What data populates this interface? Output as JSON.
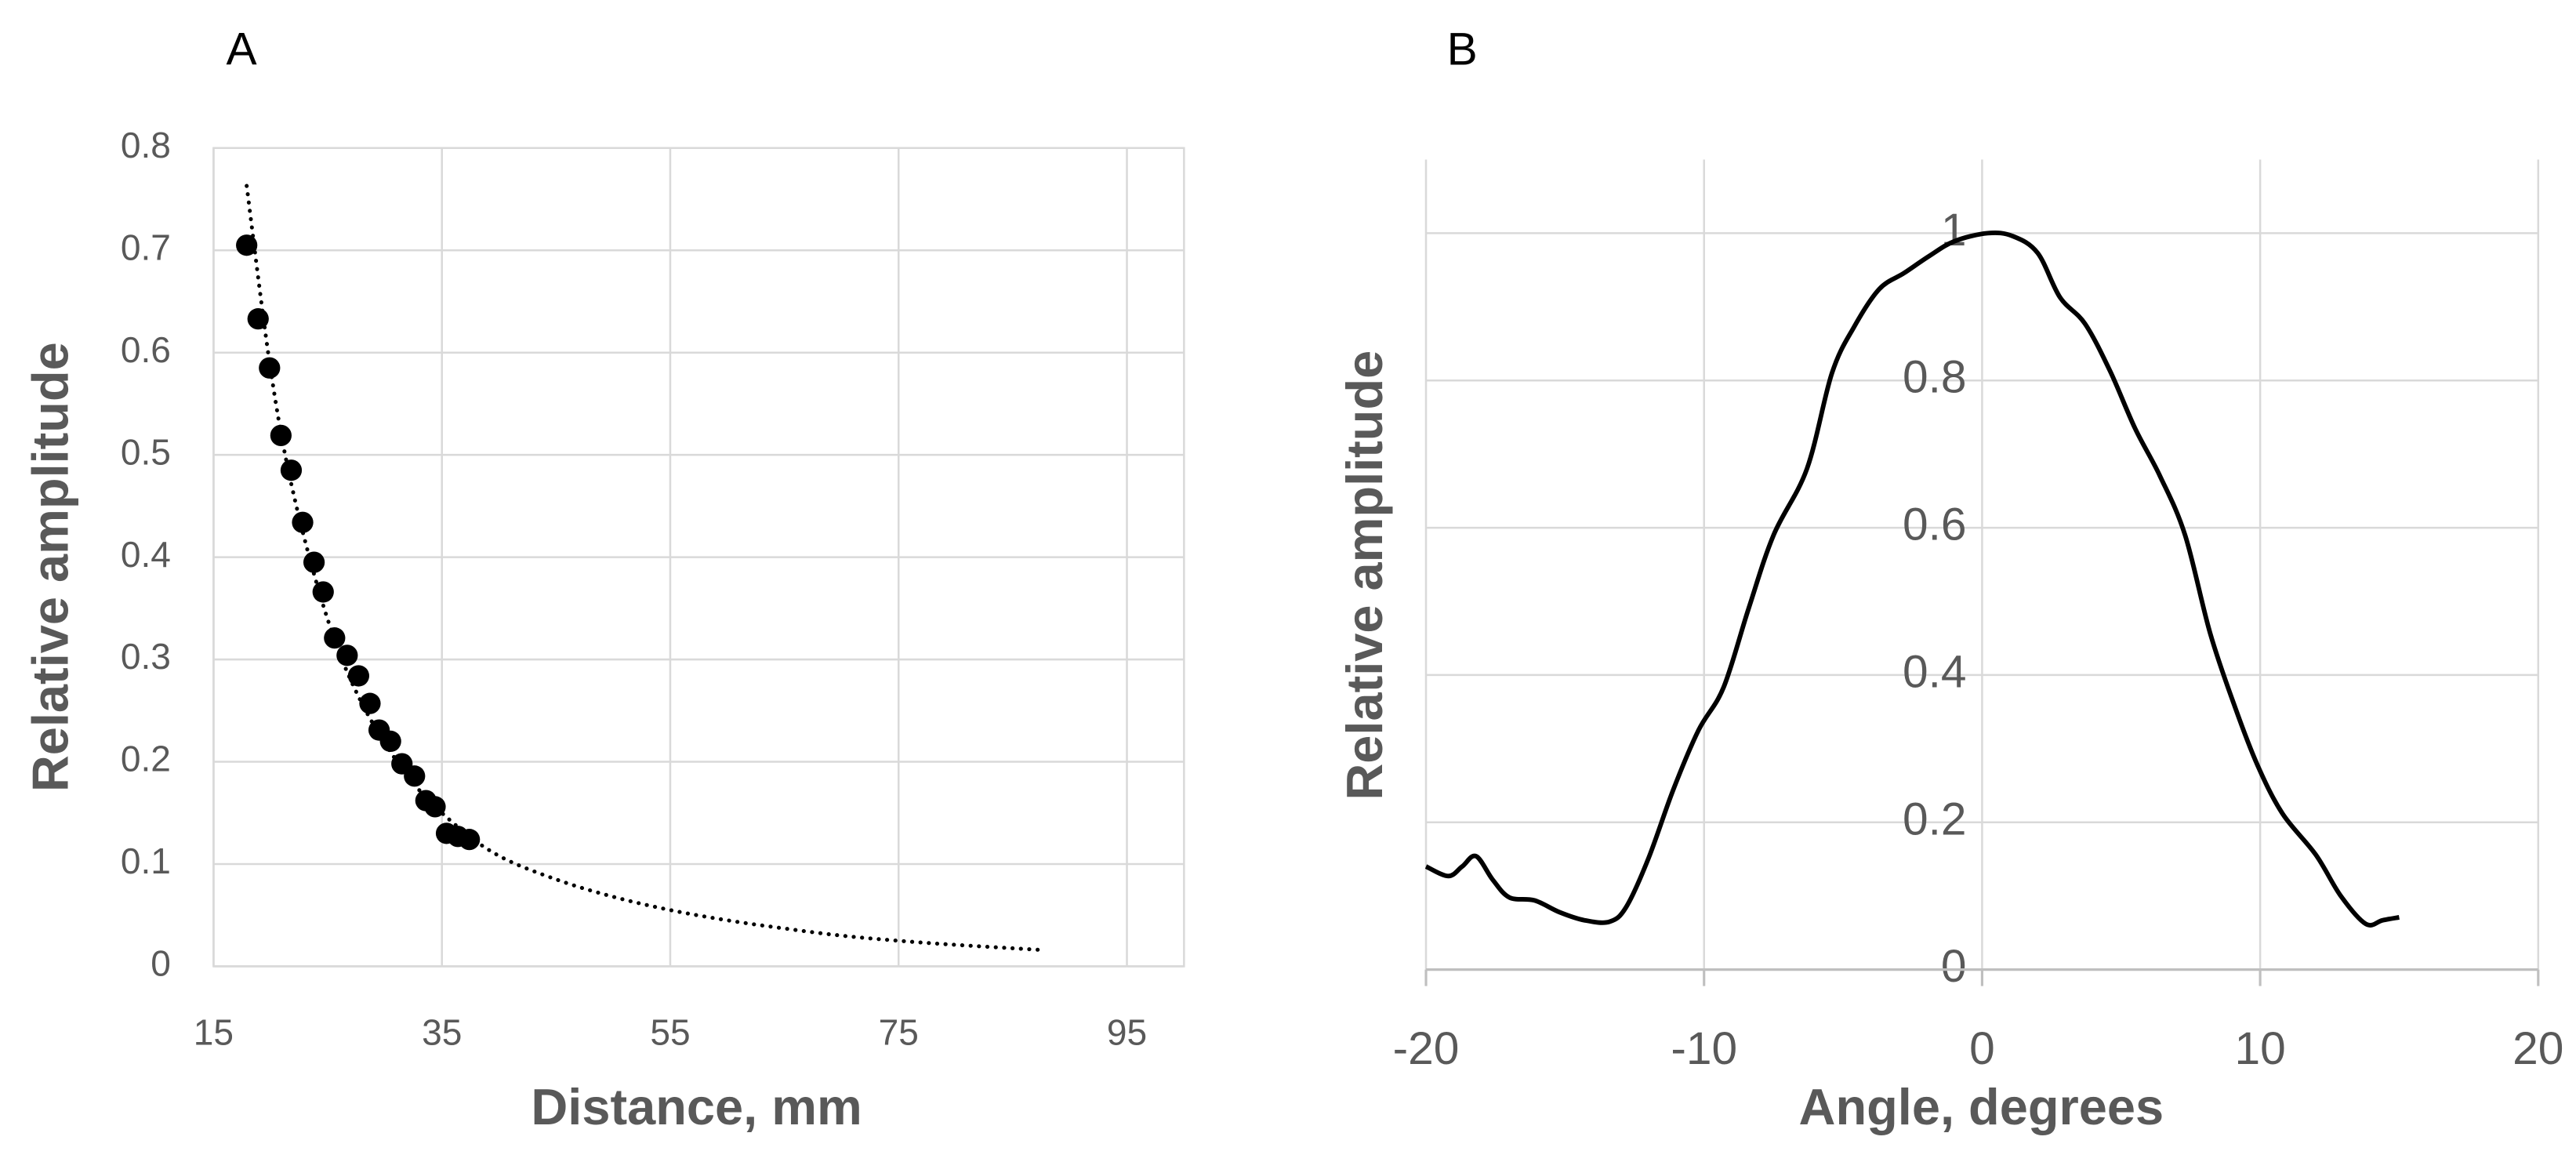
{
  "chart_data": [
    {
      "type": "scatter",
      "label": "A",
      "xlabel": "Distance, mm",
      "ylabel": "Relative amplitude",
      "xlim": [
        15,
        100
      ],
      "xticks": [
        15,
        35,
        55,
        75,
        95
      ],
      "ylim": [
        0,
        0.8
      ],
      "yticks": [
        0,
        0.1,
        0.2,
        0.3,
        0.4,
        0.5,
        0.6,
        0.7,
        0.8
      ],
      "grid": true,
      "series": [
        {
          "color": "#000000",
          "marker": "circle",
          "x": [
            17.9,
            18.9,
            19.9,
            20.9,
            21.8,
            22.8,
            23.8,
            24.6,
            25.6,
            26.7,
            27.7,
            28.7,
            29.5,
            30.5,
            31.5,
            32.6,
            33.6,
            34.4,
            35.4,
            36.4,
            37.4
          ],
          "values": [
            0.705,
            0.633,
            0.585,
            0.519,
            0.485,
            0.434,
            0.395,
            0.366,
            0.321,
            0.304,
            0.284,
            0.257,
            0.231,
            0.22,
            0.198,
            0.186,
            0.162,
            0.156,
            0.13,
            0.127,
            0.124
          ]
        },
        {
          "color": "#000000",
          "line": "dotted",
          "x": [
            17.9,
            20,
            22,
            25,
            28,
            32,
            36,
            40,
            45,
            50,
            55,
            60,
            65,
            70,
            75,
            80,
            87.5
          ],
          "values": [
            0.763,
            0.583,
            0.462,
            0.339,
            0.257,
            0.186,
            0.14,
            0.108,
            0.085,
            0.068,
            0.055,
            0.045,
            0.037,
            0.03,
            0.025,
            0.021,
            0.016
          ]
        }
      ]
    },
    {
      "type": "line",
      "label": "B",
      "xlabel": "Angle, degrees",
      "ylabel": "Relative amplitude",
      "xlim": [
        -20,
        20
      ],
      "xticks": [
        -20,
        -10,
        0,
        10,
        20
      ],
      "ylim": [
        0,
        1.1
      ],
      "yticks": [
        0,
        0.2,
        0.4,
        0.6,
        0.8,
        1
      ],
      "grid": true,
      "series": [
        {
          "color": "#000000",
          "x": [
            -20,
            -19.2,
            -18.7,
            -18.2,
            -17.6,
            -17,
            -16.1,
            -15.2,
            -14.3,
            -13.4,
            -12.8,
            -12,
            -11.1,
            -10.2,
            -9.3,
            -8.4,
            -7.5,
            -6.3,
            -5.4,
            -4.6,
            -3.7,
            -2.8,
            -1.9,
            -1,
            0.2,
            1.1,
            2,
            2.8,
            3.7,
            4.6,
            5.5,
            6.4,
            7.3,
            8.2,
            9.1,
            9.9,
            10.8,
            12,
            12.9,
            13.8,
            14.4,
            15
          ],
          "values": [
            0.14,
            0.127,
            0.14,
            0.154,
            0.122,
            0.098,
            0.094,
            0.078,
            0.067,
            0.065,
            0.085,
            0.151,
            0.245,
            0.325,
            0.383,
            0.49,
            0.59,
            0.68,
            0.81,
            0.873,
            0.924,
            0.946,
            0.969,
            0.989,
            1.0,
            0.996,
            0.973,
            0.913,
            0.877,
            0.813,
            0.735,
            0.67,
            0.59,
            0.457,
            0.356,
            0.278,
            0.212,
            0.156,
            0.1,
            0.062,
            0.067,
            0.071
          ]
        }
      ]
    }
  ]
}
